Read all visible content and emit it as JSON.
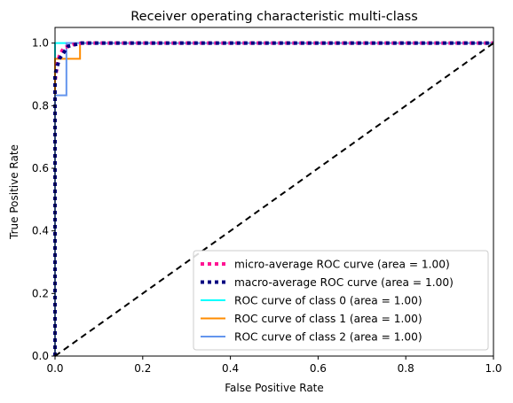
{
  "chart_data": {
    "type": "line",
    "title": "Receiver operating characteristic multi-class",
    "xlabel": "False Positive Rate",
    "ylabel": "True Positive Rate",
    "xlim": [
      0.0,
      1.0
    ],
    "ylim": [
      0.0,
      1.05
    ],
    "x_ticks": [
      "0.0",
      "0.2",
      "0.4",
      "0.6",
      "0.8",
      "1.0"
    ],
    "y_ticks": [
      "0.0",
      "0.2",
      "0.4",
      "0.6",
      "0.8",
      "1.0"
    ],
    "legend_position": "lower-right",
    "grid": false,
    "series": [
      {
        "name": "micro-average ROC curve (area = 1.00)",
        "color": "#ff1493",
        "style": "dotted",
        "points": [
          [
            0,
            0
          ],
          [
            0,
            0.88
          ],
          [
            0.005,
            0.93
          ],
          [
            0.01,
            0.96
          ],
          [
            0.02,
            0.985
          ],
          [
            0.04,
            0.995
          ],
          [
            0.06,
            1.0
          ],
          [
            1.0,
            1.0
          ]
        ]
      },
      {
        "name": "macro-average ROC curve (area = 1.00)",
        "color": "#000080",
        "style": "dotted",
        "points": [
          [
            0,
            0
          ],
          [
            0,
            0.9
          ],
          [
            0.01,
            0.95
          ],
          [
            0.03,
            0.99
          ],
          [
            0.06,
            1.0
          ],
          [
            1.0,
            1.0
          ]
        ]
      },
      {
        "name": "ROC curve of class 0 (area = 1.00)",
        "color": "#00ffff",
        "style": "solid",
        "points": [
          [
            0,
            0
          ],
          [
            0,
            1.0
          ],
          [
            1.0,
            1.0
          ]
        ]
      },
      {
        "name": "ROC curve of class 1 (area = 1.00)",
        "color": "#ff8c00",
        "style": "solid",
        "points": [
          [
            0,
            0
          ],
          [
            0,
            0.95
          ],
          [
            0.057,
            0.95
          ],
          [
            0.057,
            1.0
          ],
          [
            1.0,
            1.0
          ]
        ]
      },
      {
        "name": "ROC curve of class 2 (area = 1.00)",
        "color": "#6495ed",
        "style": "solid",
        "points": [
          [
            0,
            0
          ],
          [
            0,
            0.833
          ],
          [
            0.026,
            0.833
          ],
          [
            0.026,
            1.0
          ],
          [
            1.0,
            1.0
          ]
        ]
      }
    ],
    "diagonal": {
      "color": "#000000",
      "style": "dashed",
      "points": [
        [
          0,
          0
        ],
        [
          1.0,
          1.0
        ]
      ]
    }
  }
}
